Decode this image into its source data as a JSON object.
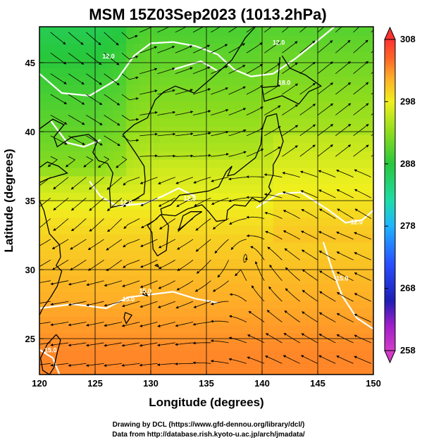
{
  "chart_data": {
    "type": "heatmap",
    "title": "MSM 15Z03Sep2023 (1013.2hPa)",
    "xlabel": "Longitude (degrees)",
    "ylabel": "Latitude  (degrees)",
    "xlim": [
      120,
      150
    ],
    "ylim": [
      22.4,
      47.6
    ],
    "xticks": [
      "120",
      "125",
      "130",
      "135",
      "140",
      "145",
      "150"
    ],
    "yticks": [
      "25",
      "30",
      "35",
      "40",
      "45"
    ],
    "grid": true,
    "colorbar": {
      "min": 258,
      "max": 308,
      "ticks": [
        "308",
        "298",
        "288",
        "278",
        "268",
        "258"
      ],
      "stops": [
        {
          "v": 258,
          "c": "#d23cc8"
        },
        {
          "v": 262,
          "c": "#a01ec8"
        },
        {
          "v": 266,
          "c": "#1e1eb4"
        },
        {
          "v": 272,
          "c": "#2850ff"
        },
        {
          "v": 278,
          "c": "#1eb4ff"
        },
        {
          "v": 282,
          "c": "#1edcaa"
        },
        {
          "v": 288,
          "c": "#28c83c"
        },
        {
          "v": 293,
          "c": "#8cdc1e"
        },
        {
          "v": 298,
          "c": "#f0f01e"
        },
        {
          "v": 302,
          "c": "#ffaa28"
        },
        {
          "v": 305,
          "c": "#ff6428"
        },
        {
          "v": 308,
          "c": "#ff3232"
        }
      ]
    },
    "contour_labels": [
      "12.0",
      "12.0",
      "12.0",
      "12.0",
      "15.0",
      "15.0",
      "12.0",
      "15.0",
      "18.0",
      "15.0"
    ],
    "cyclone_center": {
      "lon": 138.7,
      "lat": 31.3
    }
  },
  "credits": {
    "line1": "Drawing by DCL (https://www.gfd-dennou.org/library/dcl/)",
    "line2": "Data from http://database.rish.kyoto-u.ac.jp/arch/jmadata/"
  }
}
